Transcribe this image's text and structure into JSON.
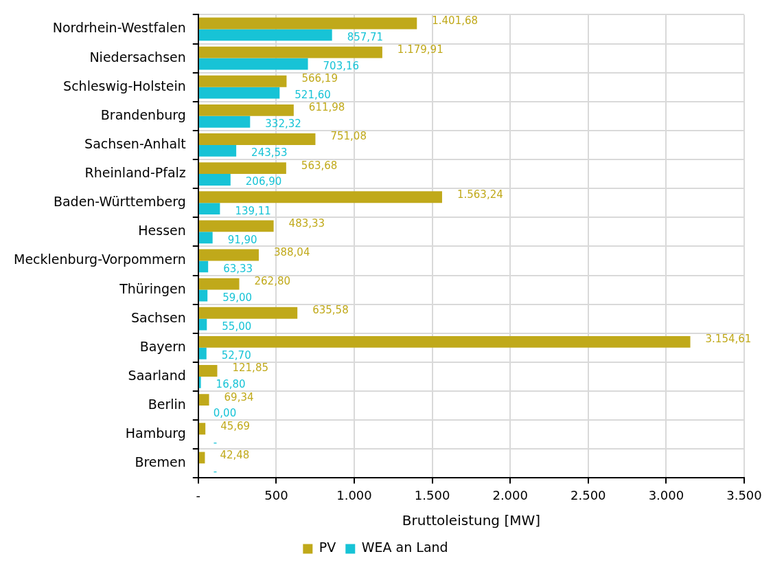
{
  "chart_data": {
    "type": "bar",
    "orientation": "horizontal",
    "xlabel": "Bruttoleistung [MW]",
    "categories": [
      "Nordrhein-Westfalen",
      "Niedersachsen",
      "Schleswig-Holstein",
      "Brandenburg",
      "Sachsen-Anhalt",
      "Rheinland-Pfalz",
      "Baden-Württemberg",
      "Hessen",
      "Mecklenburg-Vorpommern",
      "Thüringen",
      "Sachsen",
      "Bayern",
      "Saarland",
      "Berlin",
      "Hamburg",
      "Bremen"
    ],
    "series": [
      {
        "name": "PV",
        "color": "#c0a91a",
        "values": [
          1401.68,
          1179.91,
          566.19,
          611.98,
          751.08,
          563.68,
          1563.24,
          483.33,
          388.04,
          262.8,
          635.58,
          3154.61,
          121.85,
          69.34,
          45.69,
          42.48
        ],
        "value_labels": [
          "1.401,68",
          "1.179,91",
          "566,19",
          "611,98",
          "751,08",
          "563,68",
          "1.563,24",
          "483,33",
          "388,04",
          "262,80",
          "635,58",
          "3.154,61",
          "121,85",
          "69,34",
          "45,69",
          "42,48"
        ]
      },
      {
        "name": "WEA an Land",
        "color": "#17c3d6",
        "values": [
          857.71,
          703.16,
          521.6,
          332.32,
          243.53,
          206.9,
          139.11,
          91.9,
          63.33,
          59.0,
          55.0,
          52.7,
          16.8,
          0,
          0,
          0
        ],
        "value_labels": [
          "857,71",
          "703,16",
          "521,60",
          "332,32",
          "243,53",
          "206,90",
          "139,11",
          "91,90",
          "63,33",
          "59,00",
          "55,00",
          "52,70",
          "16,80",
          "0,00",
          "-",
          "-"
        ]
      }
    ],
    "xlim": [
      0,
      3500
    ],
    "xticks": [
      {
        "value": 0,
        "label": "-"
      },
      {
        "value": 500,
        "label": "500"
      },
      {
        "value": 1000,
        "label": "1.000"
      },
      {
        "value": 1500,
        "label": "1.500"
      },
      {
        "value": 2000,
        "label": "2.000"
      },
      {
        "value": 2500,
        "label": "2.500"
      },
      {
        "value": 3000,
        "label": "3.000"
      },
      {
        "value": 3500,
        "label": "3.500"
      }
    ],
    "grid": true,
    "legend": "bottom"
  }
}
